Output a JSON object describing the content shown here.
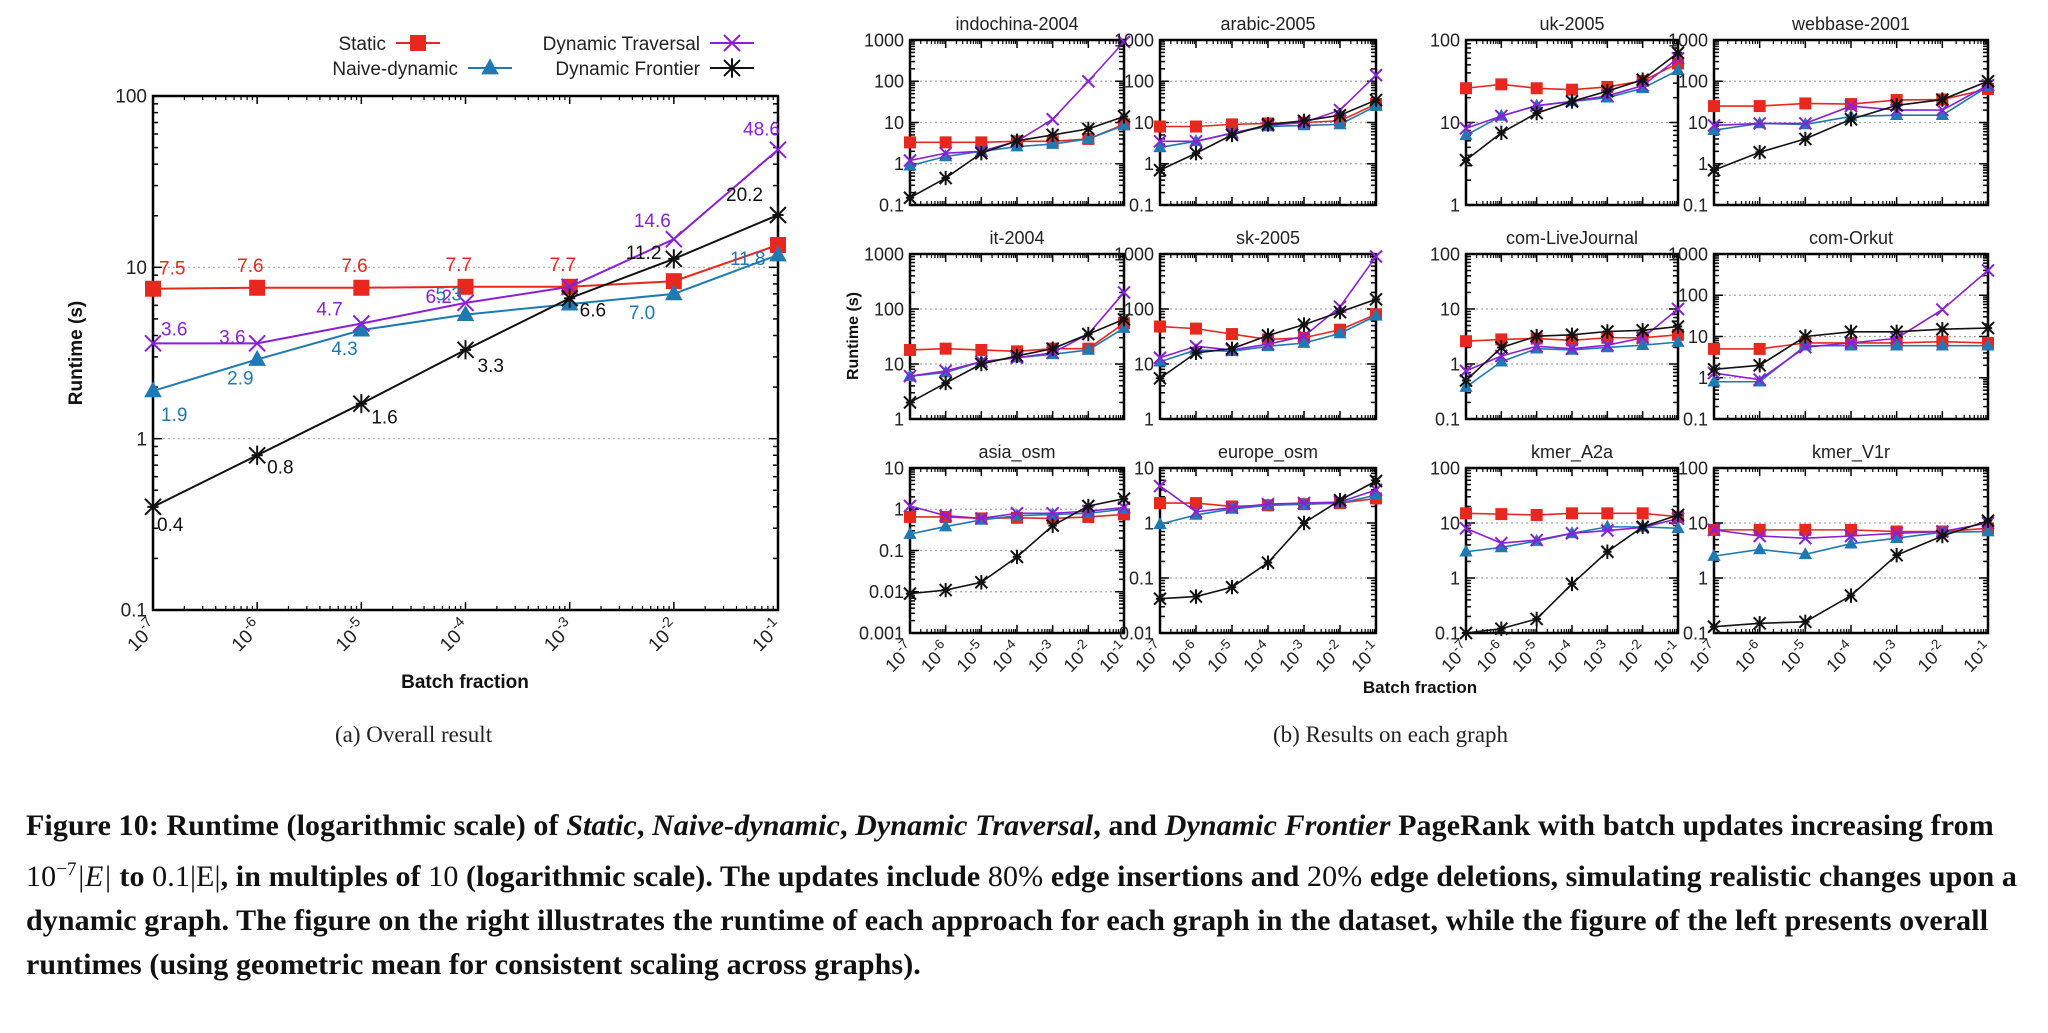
{
  "legend": {
    "series": [
      {
        "key": "static",
        "name": "Static",
        "color": "#e8281e",
        "marker": "square"
      },
      {
        "key": "naive",
        "name": "Naive-dynamic",
        "color": "#1f7ab3",
        "marker": "triangle"
      },
      {
        "key": "traversal",
        "name": "Dynamic Traversal",
        "color": "#8b1fd6",
        "marker": "x"
      },
      {
        "key": "frontier",
        "name": "Dynamic Frontier",
        "color": "#111111",
        "marker": "star"
      }
    ]
  },
  "chart_data": [
    {
      "id": "overall",
      "type": "line",
      "title": "",
      "xlabel": "Batch fraction",
      "ylabel": "Runtime (s)",
      "x": [
        "10^-7",
        "10^-6",
        "10^-5",
        "10^-4",
        "10^-3",
        "10^-2",
        "10^-1"
      ],
      "x_tick_exponents": [
        -7,
        -6,
        -5,
        -4,
        -3,
        -2,
        -1
      ],
      "yscale": "log",
      "ylim": [
        0.1,
        100
      ],
      "yticks": [
        "0.1",
        "1",
        "10",
        "100"
      ],
      "grid": "horizontal-dotted",
      "legend": "top",
      "series": [
        {
          "name": "Static",
          "values": [
            7.5,
            7.6,
            7.6,
            7.7,
            7.7,
            8.3,
            13.5
          ],
          "labels": [
            "7.5",
            "7.6",
            "7.6",
            "7.7",
            "7.7",
            "",
            ""
          ]
        },
        {
          "name": "Naive-dynamic",
          "values": [
            1.9,
            2.9,
            4.3,
            5.3,
            6.1,
            7.0,
            11.8
          ],
          "labels": [
            "1.9",
            "2.9",
            "4.3",
            "5.3",
            "",
            "7.0",
            "11.8"
          ]
        },
        {
          "name": "Dynamic Traversal",
          "values": [
            3.6,
            3.6,
            4.7,
            6.2,
            7.7,
            14.6,
            48.6
          ],
          "labels": [
            "3.6",
            "3.6",
            "4.7",
            "6.2",
            "",
            "14.6",
            "48.6"
          ]
        },
        {
          "name": "Dynamic Frontier",
          "values": [
            0.4,
            0.8,
            1.6,
            3.3,
            6.6,
            11.2,
            20.2
          ],
          "labels": [
            "0.4",
            "0.8",
            "1.6",
            "3.3",
            "6.6",
            "11.2",
            "20.2"
          ]
        }
      ]
    },
    {
      "id": "per-graph",
      "type": "line",
      "xlabel": "Batch fraction",
      "ylabel": "Runtime (s)",
      "x": [
        "10^-7",
        "10^-6",
        "10^-5",
        "10^-4",
        "10^-3",
        "10^-2",
        "10^-1"
      ],
      "yscale": "log",
      "panels": [
        {
          "title": "indochina-2004",
          "ylim": [
            0.1,
            1000
          ],
          "yticks": [
            "0.1",
            "1",
            "10",
            "100",
            "1000"
          ],
          "series": {
            "static": [
              3.3,
              3.3,
              3.3,
              3.5,
              3.5,
              4.0,
              9.0
            ],
            "naive": [
              0.9,
              1.5,
              2.0,
              2.6,
              3.0,
              4.0,
              8.5
            ],
            "traversal": [
              1.2,
              1.8,
              2.0,
              3.5,
              12,
              100,
              900
            ],
            "frontier": [
              0.15,
              0.45,
              1.8,
              3.6,
              5.0,
              7.0,
              14
            ]
          }
        },
        {
          "title": "arabic-2005",
          "ylim": [
            0.1,
            1000
          ],
          "yticks": [
            "0.1",
            "1",
            "10",
            "100",
            "1000"
          ],
          "series": {
            "static": [
              8,
              8,
              9,
              9.5,
              10,
              11,
              28
            ],
            "naive": [
              2.5,
              3.5,
              5.5,
              8,
              8.5,
              9,
              25
            ],
            "traversal": [
              3.5,
              3.5,
              5.5,
              8.5,
              10,
              20,
              140
            ],
            "frontier": [
              0.7,
              1.8,
              5,
              9,
              11,
              15,
              35
            ]
          }
        },
        {
          "title": "uk-2005",
          "ylim": [
            1,
            100
          ],
          "yticks": [
            "1",
            "10",
            "100"
          ],
          "series": {
            "static": [
              26,
              29,
              26,
              25,
              27,
              32,
              52
            ],
            "naive": [
              7,
              12,
              16,
              18,
              20,
              26,
              43
            ],
            "traversal": [
              8.5,
              12,
              16,
              18,
              21,
              28,
              60
            ],
            "frontier": [
              3.5,
              7.5,
              13,
              18,
              24,
              33,
              70
            ]
          }
        },
        {
          "title": "webbase-2001",
          "ylim": [
            0.1,
            1000
          ],
          "yticks": [
            "0.1",
            "1",
            "10",
            "100",
            "1000"
          ],
          "series": {
            "static": [
              25,
              25,
              29,
              28,
              35,
              36,
              65
            ],
            "naive": [
              6.5,
              9.5,
              9,
              14,
              15,
              15,
              75
            ],
            "traversal": [
              8.5,
              9.5,
              9.5,
              25,
              20,
              20,
              80
            ],
            "frontier": [
              0.7,
              1.9,
              4,
              12,
              26,
              36,
              100
            ]
          }
        },
        {
          "title": "it-2004",
          "ylim": [
            1,
            1000
          ],
          "yticks": [
            "1",
            "10",
            "100",
            "1000"
          ],
          "series": {
            "static": [
              18,
              19,
              18,
              17,
              19,
              19,
              55
            ],
            "naive": [
              6,
              7,
              11,
              13,
              15,
              18,
              45
            ],
            "traversal": [
              6,
              7.5,
              11,
              13,
              16,
              35,
              200
            ],
            "frontier": [
              2,
              4.5,
              10,
              14,
              19,
              35,
              65
            ]
          }
        },
        {
          "title": "sk-2005",
          "ylim": [
            1,
            1000
          ],
          "yticks": [
            "1",
            "10",
            "100",
            "1000"
          ],
          "series": {
            "static": [
              48,
              44,
              35,
              28,
              30,
              42,
              80
            ],
            "naive": [
              11,
              18,
              17,
              21,
              24,
              36,
              75
            ],
            "traversal": [
              13,
              21,
              18,
              23,
              32,
              110,
              900
            ],
            "frontier": [
              5.5,
              16,
              19,
              33,
              52,
              88,
              150
            ]
          }
        },
        {
          "title": "com-LiveJournal",
          "ylim": [
            0.1,
            100
          ],
          "yticks": [
            "0.1",
            "1",
            "10",
            "100"
          ],
          "series": {
            "static": [
              2.6,
              2.8,
              2.9,
              2.7,
              3.0,
              3.0,
              3.4
            ],
            "naive": [
              0.38,
              1.1,
              1.9,
              1.8,
              2.0,
              2.2,
              2.5
            ],
            "traversal": [
              0.75,
              1.4,
              2.1,
              1.9,
              2.2,
              3.0,
              10
            ],
            "frontier": [
              0.5,
              2.0,
              3.2,
              3.4,
              3.9,
              4.1,
              4.8
            ]
          }
        },
        {
          "title": "com-Orkut",
          "ylim": [
            0.1,
            1000
          ],
          "yticks": [
            "0.1",
            "1",
            "10",
            "100",
            "1000"
          ],
          "series": {
            "static": [
              5,
              5,
              7,
              7,
              7,
              7.5,
              7
            ],
            "naive": [
              0.8,
              0.8,
              6,
              6,
              6,
              6,
              6
            ],
            "traversal": [
              1.3,
              0.9,
              5.5,
              7,
              9,
              45,
              400
            ],
            "frontier": [
              1.6,
              2,
              10,
              13,
              13,
              15,
              16
            ]
          }
        },
        {
          "title": "asia_osm",
          "ylim": [
            0.001,
            10
          ],
          "yticks": [
            "0.001",
            "0.01",
            "0.1",
            "1",
            "10"
          ],
          "series": {
            "static": [
              0.65,
              0.65,
              0.6,
              0.62,
              0.6,
              0.65,
              0.75
            ],
            "naive": [
              0.25,
              0.38,
              0.55,
              0.7,
              0.75,
              0.8,
              1.0
            ],
            "traversal": [
              1.2,
              0.7,
              0.6,
              0.8,
              0.8,
              0.9,
              1.1
            ],
            "frontier": [
              0.009,
              0.011,
              0.017,
              0.07,
              0.4,
              1.2,
              1.8
            ]
          }
        },
        {
          "title": "europe_osm",
          "ylim": [
            0.01,
            10
          ],
          "yticks": [
            "0.01",
            "0.1",
            "1",
            "10"
          ],
          "series": {
            "static": [
              2.3,
              2.3,
              2.0,
              2.1,
              2.2,
              2.3,
              2.8
            ],
            "naive": [
              0.95,
              1.4,
              1.8,
              2.1,
              2.2,
              2.3,
              3.2
            ],
            "traversal": [
              4.7,
              1.6,
              1.9,
              2.2,
              2.3,
              2.4,
              4
            ],
            "frontier": [
              0.042,
              0.046,
              0.068,
              0.19,
              1.0,
              2.6,
              5.8
            ]
          }
        },
        {
          "title": "kmer_A2a",
          "ylim": [
            0.1,
            100
          ],
          "yticks": [
            "0.1",
            "1",
            "10",
            "100"
          ],
          "series": {
            "static": [
              15,
              14.5,
              14,
              15,
              15,
              15,
              13
            ],
            "naive": [
              3,
              3.6,
              4.7,
              6.5,
              8.5,
              8.5,
              8
            ],
            "traversal": [
              8,
              4.3,
              4.9,
              6.5,
              7.3,
              8.3,
              12
            ],
            "frontier": [
              0.1,
              0.12,
              0.18,
              0.78,
              3.0,
              8.5,
              14
            ]
          }
        },
        {
          "title": "kmer_V1r",
          "ylim": [
            0.1,
            100
          ],
          "yticks": [
            "0.1",
            "1",
            "10",
            "100"
          ],
          "series": {
            "static": [
              7.5,
              7.5,
              7.5,
              7.5,
              7,
              7,
              8
            ],
            "naive": [
              2.5,
              3.3,
              2.7,
              4.2,
              5.3,
              6.8,
              7
            ],
            "traversal": [
              7.5,
              5.8,
              5.3,
              5.8,
              6.5,
              7,
              10
            ],
            "frontier": [
              0.13,
              0.15,
              0.16,
              0.48,
              2.6,
              5.8,
              11
            ]
          }
        }
      ]
    }
  ],
  "subcaptions": {
    "a": "(a)  Overall result",
    "b": "(b)  Results on each graph"
  },
  "caption": {
    "p1": "Figure 10: Runtime (logarithmic scale) of ",
    "static": "Static",
    "c1": ", ",
    "naive": "Naive-dynamic",
    "c2": ", ",
    "traversal": "Dynamic Traversal",
    "c3": ", and ",
    "frontier": "Dynamic Frontier",
    "p2": " PageRank with batch updates increasing from ",
    "m1": "10",
    "m1sup": "−7",
    "m2": "|E|",
    "p3": " to ",
    "m3": "0.1|E|",
    "p4": ", in multiples of ",
    "m4": "10",
    "p5": " (logarithmic scale). The updates include ",
    "m5": "80%",
    "p6": " edge insertions and ",
    "m6": "20%",
    "p7": " edge deletions, simulating realistic changes upon a dynamic graph. The figure on the right illustrates the runtime of each approach for each graph in the dataset, while the figure of the left presents overall runtimes (using geometric mean for consistent scaling across graphs)."
  }
}
